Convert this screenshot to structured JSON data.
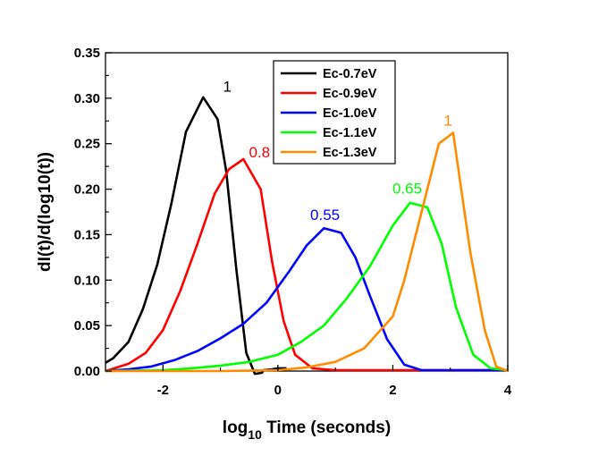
{
  "chart_data": {
    "type": "line",
    "xlabel_main": "log",
    "xlabel_sub": "10",
    "xlabel_rest": " Time (seconds)",
    "ylabel": "dI(t)/d(log10(t))",
    "xlim": [
      -3,
      4
    ],
    "ylim": [
      0,
      0.35
    ],
    "xticks": [
      -2,
      0,
      2,
      4
    ],
    "xtick_labels": [
      "-2",
      "0",
      "2",
      "4"
    ],
    "yticks": [
      0.0,
      0.05,
      0.1,
      0.15,
      0.2,
      0.25,
      0.3,
      0.35
    ],
    "ytick_labels": [
      "0.00",
      "0.05",
      "0.10",
      "0.15",
      "0.20",
      "0.25",
      "0.30",
      "0.35"
    ],
    "grid": false,
    "legend_position": "top-center",
    "series": [
      {
        "name": "Ec-0.7eV",
        "color": "#000000",
        "x": [
          -3.0,
          -2.87,
          -2.6,
          -2.35,
          -2.1,
          -1.85,
          -1.6,
          -1.3,
          -1.05,
          -0.9,
          -0.72,
          -0.55,
          -0.4,
          -0.28,
          -0.25,
          -0.1,
          0.0,
          0.15
        ],
        "y": [
          0.009,
          0.014,
          0.032,
          0.068,
          0.117,
          0.185,
          0.263,
          0.301,
          0.277,
          0.22,
          0.11,
          0.02,
          -0.003,
          -0.002,
          0.001,
          0.002,
          0.003,
          0.003
        ]
      },
      {
        "name": "Ec-0.9eV",
        "color": "#ff0000",
        "x": [
          -3.0,
          -2.6,
          -2.3,
          -2.0,
          -1.7,
          -1.4,
          -1.1,
          -0.85,
          -0.6,
          -0.3,
          -0.1,
          0.1,
          0.3,
          0.6,
          1.0,
          1.5,
          2.0,
          2.5,
          3.0,
          4.0
        ],
        "y": [
          0.0,
          0.008,
          0.02,
          0.045,
          0.088,
          0.14,
          0.195,
          0.222,
          0.233,
          0.2,
          0.12,
          0.055,
          0.018,
          0.003,
          0.001,
          0.001,
          0.001,
          0.001,
          0.001,
          0.001
        ]
      },
      {
        "name": "Ec-1.0eV",
        "color": "#0000ff",
        "x": [
          -3.0,
          -2.6,
          -2.2,
          -1.8,
          -1.4,
          -1.0,
          -0.6,
          -0.2,
          0.2,
          0.5,
          0.8,
          1.1,
          1.35,
          1.6,
          1.9,
          2.2,
          2.5,
          3.0,
          3.5,
          4.0
        ],
        "y": [
          0.0,
          0.002,
          0.005,
          0.012,
          0.022,
          0.036,
          0.052,
          0.075,
          0.11,
          0.138,
          0.157,
          0.152,
          0.125,
          0.083,
          0.035,
          0.007,
          0.001,
          0.001,
          0.001,
          0.001
        ]
      },
      {
        "name": "Ec-1.1eV",
        "color": "#00ff00",
        "x": [
          -3.0,
          -2.0,
          -1.5,
          -1.0,
          -0.5,
          0.0,
          0.4,
          0.8,
          1.2,
          1.6,
          2.0,
          2.3,
          2.6,
          2.85,
          3.1,
          3.4,
          3.7,
          4.0
        ],
        "y": [
          0.0,
          0.001,
          0.003,
          0.006,
          0.01,
          0.018,
          0.032,
          0.05,
          0.08,
          0.115,
          0.16,
          0.185,
          0.18,
          0.14,
          0.07,
          0.018,
          0.003,
          0.001
        ]
      },
      {
        "name": "Ec-1.3eV",
        "color": "#ff8c00",
        "x": [
          -3.0,
          -1.0,
          0.0,
          0.5,
          1.0,
          1.5,
          2.0,
          2.2,
          2.5,
          2.8,
          3.05,
          3.35,
          3.6,
          3.8,
          4.0
        ],
        "y": [
          0.0,
          0.0,
          0.001,
          0.004,
          0.01,
          0.025,
          0.06,
          0.1,
          0.175,
          0.25,
          0.262,
          0.13,
          0.045,
          0.005,
          0.0
        ]
      }
    ],
    "annotations": [
      {
        "text": "1",
        "color": "#000000",
        "x": -0.88,
        "y": 0.307
      },
      {
        "text": "0.8",
        "color": "#ff0000",
        "x": -0.32,
        "y": 0.235
      },
      {
        "text": "0.55",
        "color": "#0000ff",
        "x": 0.82,
        "y": 0.166
      },
      {
        "text": "0.65",
        "color": "#00ff00",
        "x": 2.25,
        "y": 0.195
      },
      {
        "text": "1",
        "color": "#ff8c00",
        "x": 2.96,
        "y": 0.27
      }
    ]
  }
}
